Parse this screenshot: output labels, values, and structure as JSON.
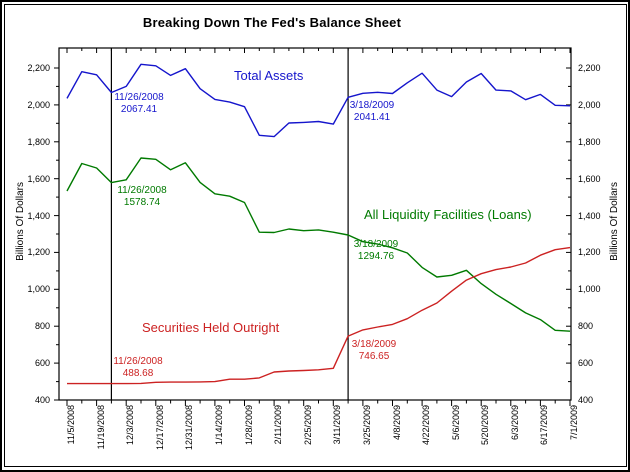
{
  "title": "Breaking Down The Fed's Balance Sheet",
  "colors": {
    "background": "#ffffff",
    "frame": "#000000",
    "marker_line": "#000000"
  },
  "axes": {
    "y_left_label": "Billions Of Dollars",
    "y_right_label": "Billions Of Dollars",
    "y_ticks": [
      "400",
      "600",
      "800",
      "1,000",
      "1,200",
      "1,400",
      "1,600",
      "1,800",
      "2,000",
      "2,200"
    ],
    "x_tick_labels": [
      "11/5/2008",
      "11/19/2008",
      "12/3/2008",
      "12/17/2008",
      "12/31/2008",
      "1/14/2009",
      "1/28/2009",
      "2/11/2009",
      "2/25/2009",
      "3/11/2009",
      "3/25/2009",
      "4/8/2009",
      "4/22/2009",
      "5/6/2009",
      "5/20/2009",
      "6/3/2009",
      "6/17/2009",
      "7/1/2009"
    ]
  },
  "chart_data": {
    "type": "line",
    "title": "Breaking Down The Fed's Balance Sheet",
    "xlabel": "",
    "ylabel": "Billions Of Dollars",
    "ylim": [
      400,
      2200
    ],
    "grid": false,
    "legend_position": "inline-labels",
    "x": [
      "11/5/2008",
      "11/12/2008",
      "11/19/2008",
      "11/26/2008",
      "12/3/2008",
      "12/10/2008",
      "12/17/2008",
      "12/24/2008",
      "12/31/2008",
      "1/7/2009",
      "1/14/2009",
      "1/21/2009",
      "1/28/2009",
      "2/4/2009",
      "2/11/2009",
      "2/18/2009",
      "2/25/2009",
      "3/4/2009",
      "3/11/2009",
      "3/18/2009",
      "3/25/2009",
      "4/1/2009",
      "4/8/2009",
      "4/15/2009",
      "4/22/2009",
      "4/29/2009",
      "5/6/2009",
      "5/13/2009",
      "5/20/2009",
      "5/27/2009",
      "6/3/2009",
      "6/10/2009",
      "6/17/2009",
      "6/24/2009",
      "7/1/2009"
    ],
    "series": [
      {
        "name": "Total Assets",
        "color": "#1515CC",
        "values": [
          2035,
          2180,
          2163,
          2067.41,
          2100,
          2220,
          2212,
          2160,
          2196,
          2088,
          2030,
          2015,
          1990,
          1835,
          1828,
          1902,
          1905,
          1910,
          1896,
          2041.41,
          2063,
          2068,
          2062,
          2120,
          2172,
          2080,
          2045,
          2124,
          2170,
          2080,
          2076,
          2028,
          2057,
          1998,
          1995
        ]
      },
      {
        "name": "All Liquidity Facilities (Loans)",
        "color": "#007A00",
        "values": [
          1533,
          1682,
          1658,
          1578.74,
          1594,
          1712,
          1705,
          1648,
          1686,
          1580,
          1518,
          1505,
          1471,
          1310,
          1308,
          1327,
          1318,
          1322,
          1310,
          1294.76,
          1258,
          1245,
          1225,
          1197,
          1119,
          1067,
          1076,
          1103,
          1031,
          973,
          923,
          872,
          836,
          778,
          773
        ]
      },
      {
        "name": "Securities Held Outright",
        "color": "#CC2222",
        "values": [
          489,
          489,
          489,
          488.68,
          489,
          490,
          496,
          497,
          497,
          498,
          500,
          513,
          513,
          520,
          552,
          557,
          560,
          564,
          572,
          746.65,
          780,
          796,
          810,
          841,
          887,
          926,
          990,
          1050,
          1085,
          1107,
          1121,
          1143,
          1185,
          1215,
          1226
        ]
      }
    ],
    "vertical_markers": [
      "11/26/2008",
      "3/18/2009"
    ],
    "annotations": [
      {
        "series": "Total Assets",
        "date": "11/26/2008",
        "value": "2067.41"
      },
      {
        "series": "All Liquidity Facilities (Loans)",
        "date": "11/26/2008",
        "value": "1578.74"
      },
      {
        "series": "Securities Held Outright",
        "date": "11/26/2008",
        "value": "488.68"
      },
      {
        "series": "Total Assets",
        "date": "3/18/2009",
        "value": "2041.41"
      },
      {
        "series": "All Liquidity Facilities (Loans)",
        "date": "3/18/2009",
        "value": "1294.76"
      },
      {
        "series": "Securities Held Outright",
        "date": "3/18/2009",
        "value": "746.65"
      }
    ]
  }
}
